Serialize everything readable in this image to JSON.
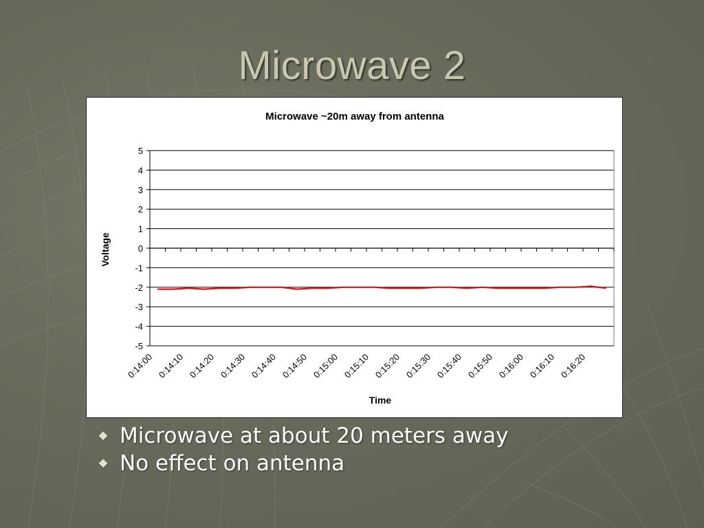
{
  "slide": {
    "title": "Microwave 2",
    "bullets": [
      "Microwave at about 20 meters away",
      "No effect on antenna"
    ]
  },
  "colors": {
    "title": "#c9c7ad",
    "series": "#e01010",
    "background": "#686a5b"
  },
  "icons": {
    "bullet": "diamond-bullet-icon"
  },
  "chart_data": {
    "type": "line",
    "title": "Microwave ~20m away from antenna",
    "xlabel": "Time",
    "ylabel": "Voltage",
    "ylim": [
      -5,
      5
    ],
    "yticks": [
      5,
      4,
      3,
      2,
      1,
      0,
      -1,
      -2,
      -3,
      -4,
      -5
    ],
    "grid": true,
    "legend": "none",
    "x_tick_labels": [
      "0:14:00",
      "0:14:10",
      "0:14:20",
      "0:14:30",
      "0:14:40",
      "0:14:50",
      "0:15:00",
      "0:15:10",
      "0:15:20",
      "0:15:30",
      "0:15:40",
      "0:15:50",
      "0:16:00",
      "0:16:10",
      "0:16:20"
    ],
    "x_tick_count": 30,
    "series": [
      {
        "color": "#e01010",
        "x": [
          "0:14:00",
          "0:14:05",
          "0:14:10",
          "0:14:15",
          "0:14:20",
          "0:14:25",
          "0:14:30",
          "0:14:35",
          "0:14:40",
          "0:14:45",
          "0:14:50",
          "0:14:55",
          "0:15:00",
          "0:15:05",
          "0:15:10",
          "0:15:15",
          "0:15:20",
          "0:15:25",
          "0:15:30",
          "0:15:35",
          "0:15:40",
          "0:15:45",
          "0:15:50",
          "0:15:55",
          "0:16:00",
          "0:16:05",
          "0:16:10",
          "0:16:15",
          "0:16:20",
          "0:16:25"
        ],
        "values": [
          -2.1,
          -2.1,
          -2.05,
          -2.1,
          -2.05,
          -2.05,
          -2.0,
          -2.0,
          -2.0,
          -2.1,
          -2.05,
          -2.05,
          -2.0,
          -2.0,
          -2.0,
          -2.05,
          -2.05,
          -2.05,
          -2.0,
          -2.0,
          -2.05,
          -2.0,
          -2.05,
          -2.05,
          -2.05,
          -2.05,
          -2.0,
          -2.0,
          -1.95,
          -2.05
        ]
      }
    ]
  }
}
